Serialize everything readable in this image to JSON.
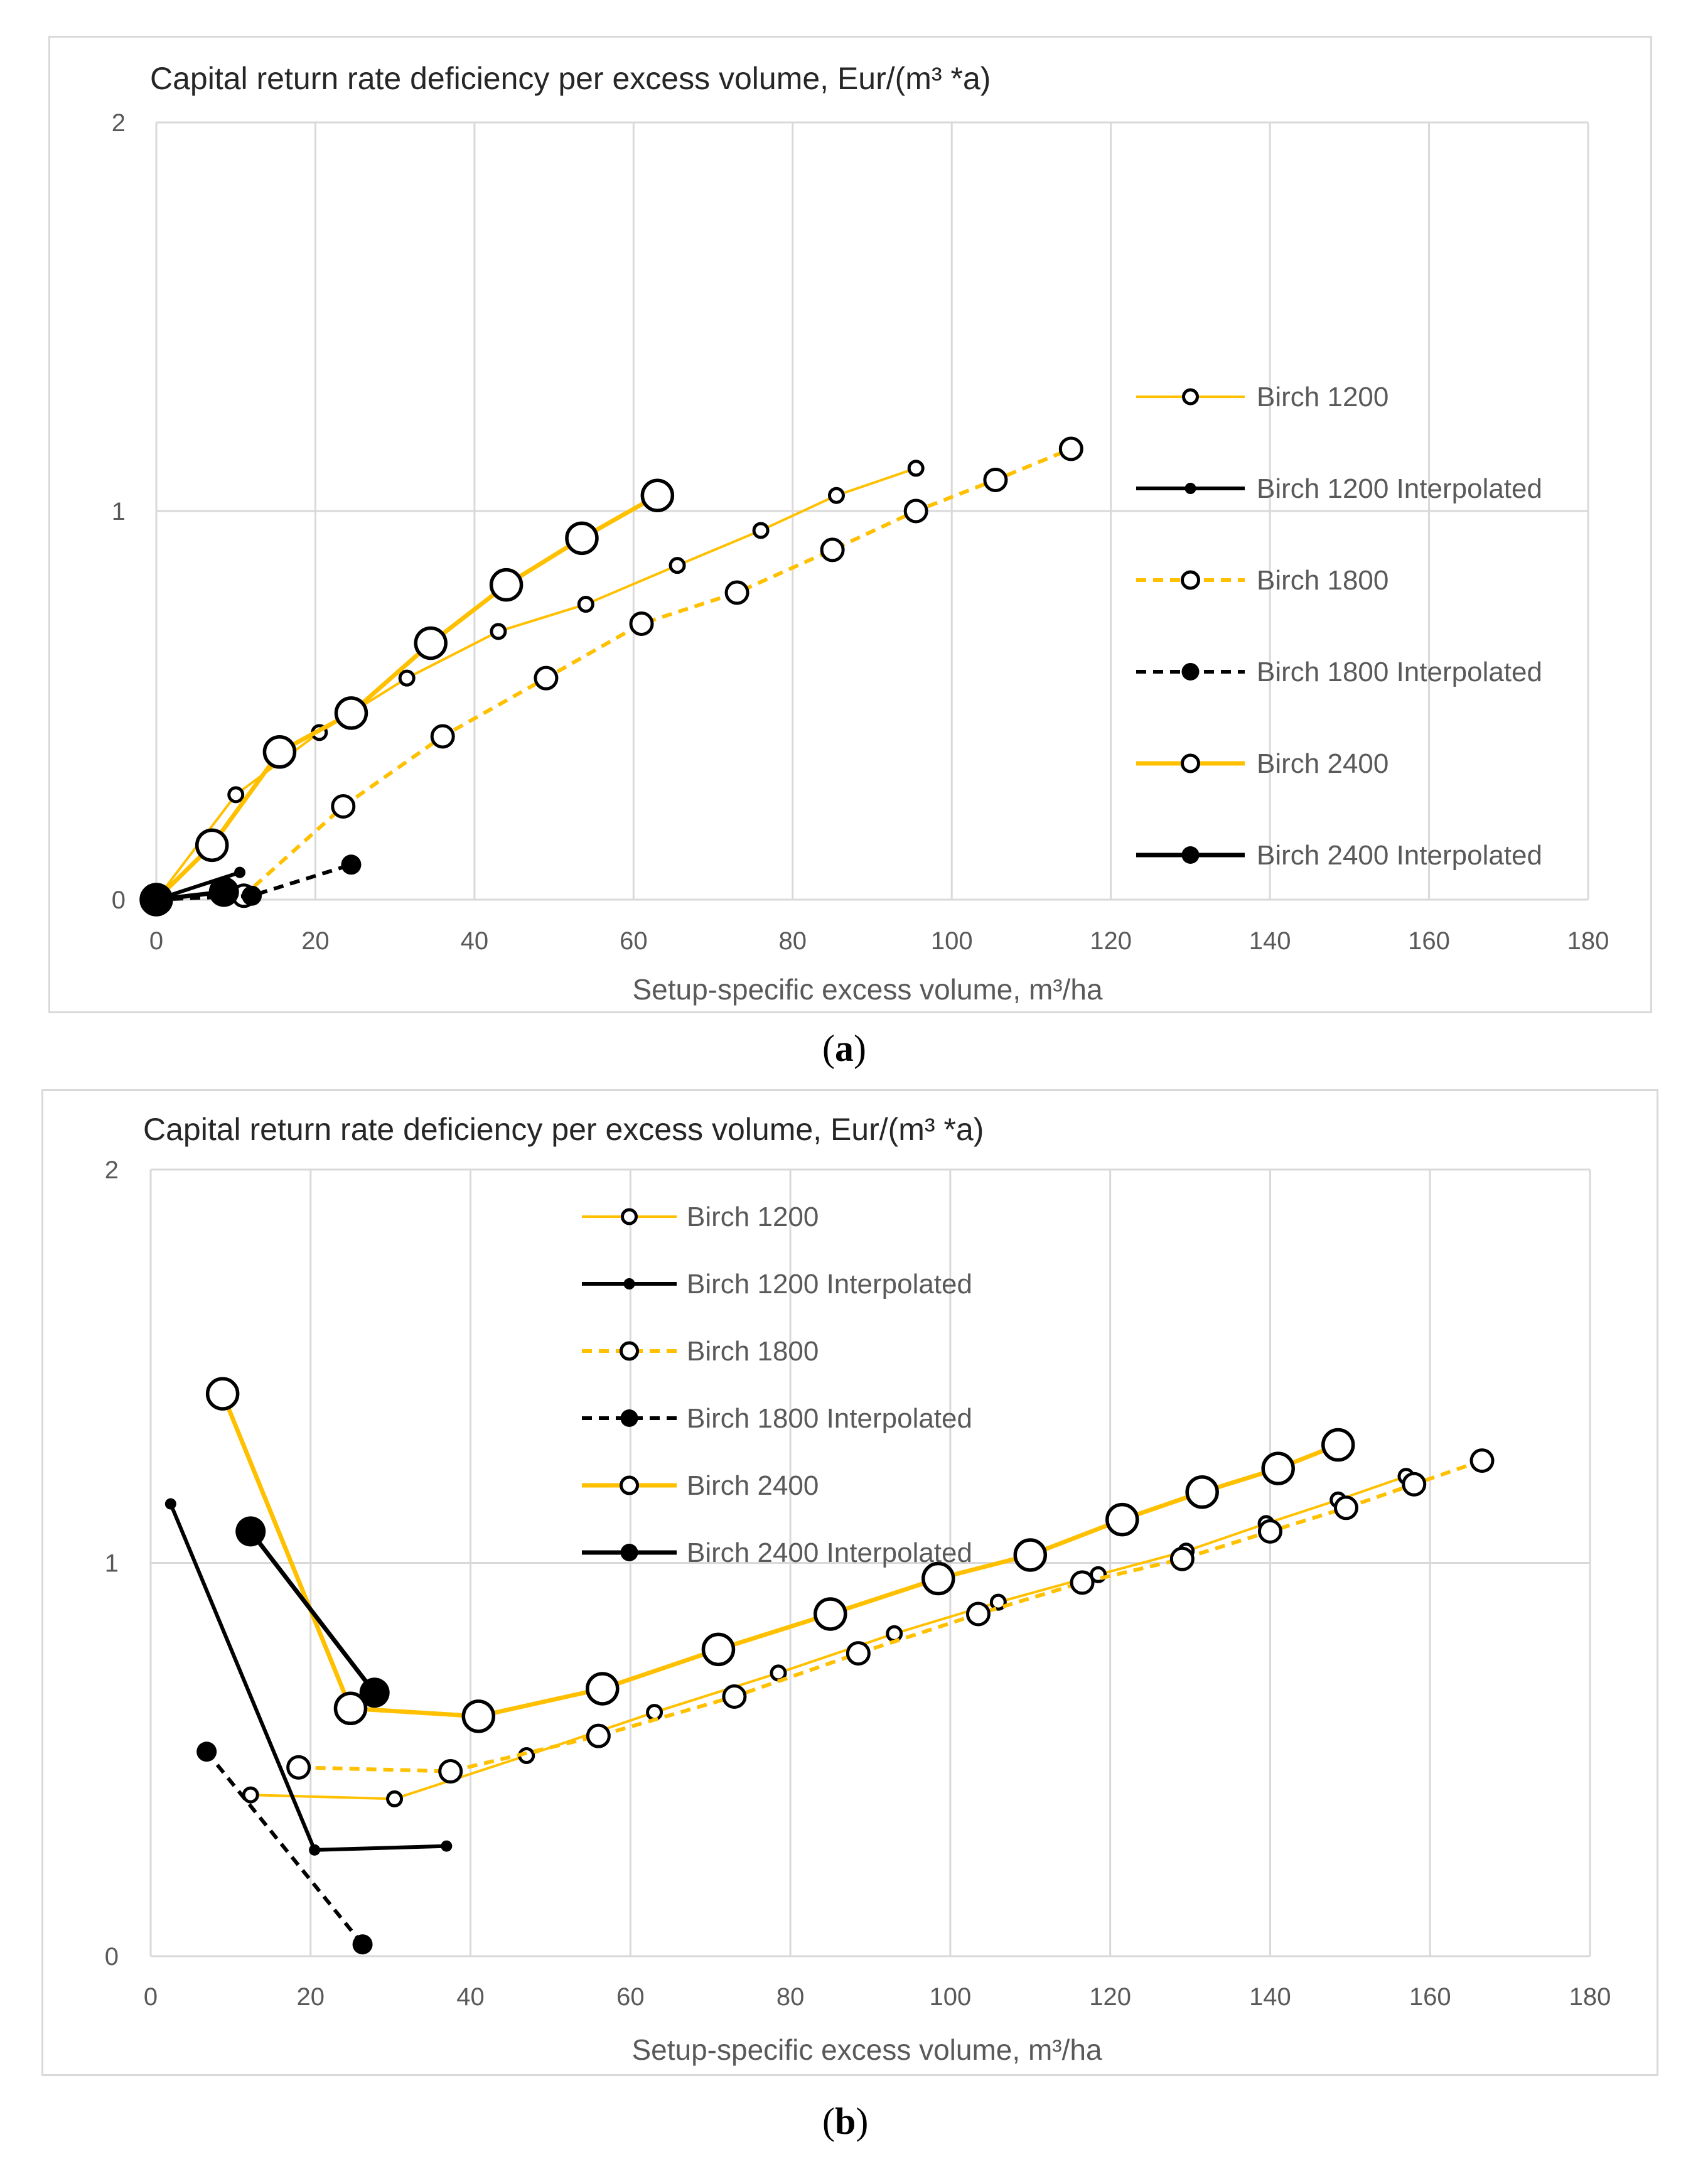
{
  "figure": {
    "label_a": "a",
    "label_b": "b"
  },
  "chart_data": [
    {
      "type": "line",
      "panel": "a",
      "title": "Capital return rate deficiency per excess volume,  Eur/(m³ *a)",
      "xlabel": "Setup-specific excess volume, m³/ha",
      "ylabel": "",
      "xlim": [
        0,
        180
      ],
      "ylim": [
        0,
        2
      ],
      "x_ticks": [
        "0",
        "20",
        "40",
        "60",
        "80",
        "100",
        "120",
        "140",
        "160",
        "180"
      ],
      "y_ticks": [
        "0",
        "1",
        "2"
      ],
      "grid": true,
      "legend_position": "right",
      "series": [
        {
          "name": "Birch 1200",
          "color": "#FFC000",
          "dash": false,
          "marker": "open-small",
          "x": [
            0,
            10,
            20.5,
            31.5,
            43,
            54,
            65.5,
            76,
            85.5,
            95.5
          ],
          "y": [
            0,
            0.27,
            0.43,
            0.57,
            0.69,
            0.76,
            0.86,
            0.95,
            1.04,
            1.11
          ]
        },
        {
          "name": "Birch 1200 Interpolated",
          "color": "#000000",
          "dash": false,
          "marker": "filled-small",
          "x": [
            0,
            10.5
          ],
          "y": [
            0,
            0.07
          ]
        },
        {
          "name": "Birch 1800",
          "color": "#FFC000",
          "dash": true,
          "marker": "open-medium",
          "x": [
            0,
            11,
            23.5,
            36,
            49,
            61,
            73,
            85,
            95.5,
            105.5,
            115
          ],
          "y": [
            0,
            0.01,
            0.24,
            0.42,
            0.57,
            0.71,
            0.79,
            0.9,
            1.0,
            1.08,
            1.16
          ]
        },
        {
          "name": "Birch 1800 Interpolated",
          "color": "#000000",
          "dash": true,
          "marker": "filled-medium",
          "x": [
            0,
            12,
            24.5
          ],
          "y": [
            0,
            0.01,
            0.09
          ]
        },
        {
          "name": "Birch 2400",
          "color": "#FFC000",
          "dash": false,
          "marker": "open-large",
          "x": [
            0,
            7,
            15.5,
            24.5,
            34.5,
            44,
            53.5,
            63
          ],
          "y": [
            0,
            0.14,
            0.38,
            0.48,
            0.66,
            0.81,
            0.93,
            1.04
          ]
        },
        {
          "name": "Birch 2400 Interpolated",
          "color": "#000000",
          "dash": false,
          "marker": "filled-large",
          "x": [
            0,
            8.5
          ],
          "y": [
            0,
            0.02
          ]
        }
      ]
    },
    {
      "type": "line",
      "panel": "b",
      "title": "Capital return rate deficiency per excess volume,  Eur/(m³ *a)",
      "xlabel": "Setup-specific excess volume, m³/ha",
      "ylabel": "",
      "xlim": [
        0,
        180
      ],
      "ylim": [
        0,
        2
      ],
      "x_ticks": [
        "0",
        "20",
        "40",
        "60",
        "80",
        "100",
        "120",
        "140",
        "160",
        "180"
      ],
      "y_ticks": [
        "0",
        "1",
        "2"
      ],
      "grid": true,
      "legend_position": "top-center",
      "series": [
        {
          "name": "Birch 1200",
          "color": "#FFC000",
          "dash": false,
          "marker": "open-small",
          "x": [
            12.5,
            30.5,
            47,
            63,
            78.5,
            93,
            106,
            118.5,
            129.5,
            139.5,
            148.5,
            157
          ],
          "y": [
            0.41,
            0.4,
            0.51,
            0.62,
            0.72,
            0.82,
            0.9,
            0.97,
            1.03,
            1.1,
            1.16,
            1.22
          ]
        },
        {
          "name": "Birch 1200 Interpolated",
          "color": "#000000",
          "dash": false,
          "marker": "filled-small",
          "x": [
            2.5,
            20.5,
            37
          ],
          "y": [
            1.15,
            0.27,
            0.28
          ]
        },
        {
          "name": "Birch 1800",
          "color": "#FFC000",
          "dash": true,
          "marker": "open-medium",
          "x": [
            18.5,
            37.5,
            56,
            73,
            88.5,
            103.5,
            116.5,
            129,
            140,
            149.5,
            158,
            166.5
          ],
          "y": [
            0.48,
            0.47,
            0.56,
            0.66,
            0.77,
            0.87,
            0.95,
            1.01,
            1.08,
            1.14,
            1.2,
            1.26
          ]
        },
        {
          "name": "Birch 1800 Interpolated",
          "color": "#000000",
          "dash": true,
          "marker": "filled-medium",
          "x": [
            7,
            26.5
          ],
          "y": [
            0.52,
            0.03
          ]
        },
        {
          "name": "Birch 2400",
          "color": "#FFC000",
          "dash": false,
          "marker": "open-large",
          "x": [
            9,
            25,
            41,
            56.5,
            71,
            85,
            98.5,
            110,
            121.5,
            131.5,
            141,
            148.5
          ],
          "y": [
            1.43,
            0.63,
            0.61,
            0.68,
            0.78,
            0.87,
            0.96,
            1.02,
            1.11,
            1.18,
            1.24,
            1.3
          ]
        },
        {
          "name": "Birch 2400 Interpolated",
          "color": "#000000",
          "dash": false,
          "marker": "filled-large",
          "x": [
            12.5,
            28
          ],
          "y": [
            1.08,
            0.67
          ]
        }
      ]
    }
  ]
}
